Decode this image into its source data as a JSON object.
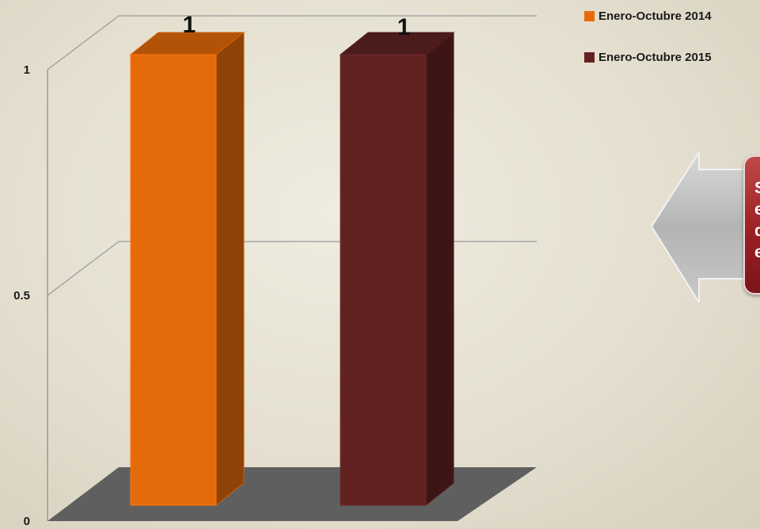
{
  "chart_data": {
    "type": "bar",
    "categories": [
      ""
    ],
    "series": [
      {
        "name": "Enero-Octubre 2014",
        "values": [
          1
        ],
        "color": "#e56b0a"
      },
      {
        "name": "Enero-Octubre 2015",
        "values": [
          1
        ],
        "color": "#622222"
      }
    ],
    "yticks": [
      "0",
      "0.5",
      "1"
    ],
    "ylim": [
      0,
      1
    ],
    "data_labels": [
      "1",
      "1"
    ],
    "title": "",
    "xlabel": "",
    "ylabel": "",
    "grid": true,
    "legend_position": "top-right",
    "style": "3d-column"
  },
  "callout": {
    "text": "S\ne\nd\ne",
    "arrow_direction": "left",
    "box_color": "#9a2025",
    "arrow_color": "#b7b7b7"
  }
}
